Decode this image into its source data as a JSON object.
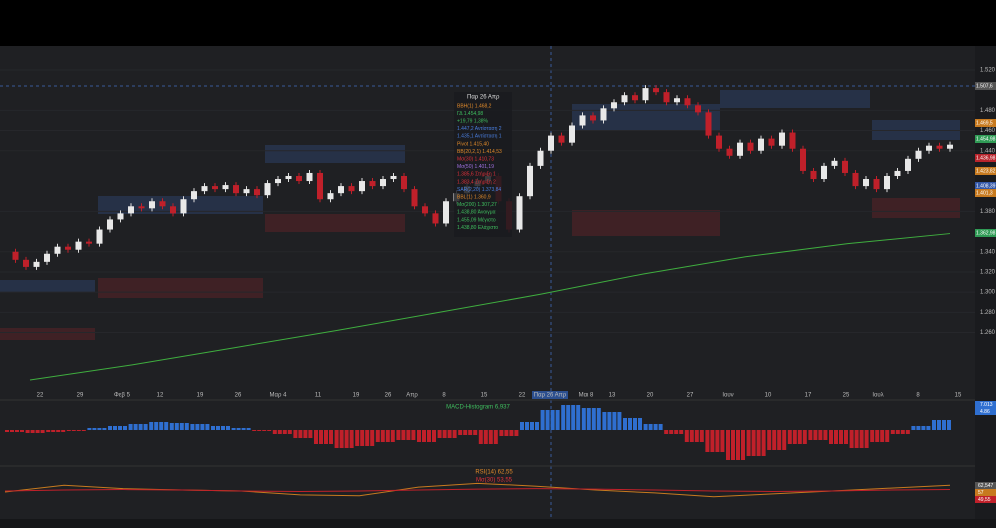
{
  "price_axis": {
    "range": [
      1.2051,
      1.5437
    ],
    "ticks": [
      {
        "value": 1.52,
        "label": "1.520"
      },
      {
        "value": 1.48,
        "label": "1.480"
      },
      {
        "value": 1.46,
        "label": "1.460"
      },
      {
        "value": 1.44,
        "label": "1.440"
      },
      {
        "value": 1.38,
        "label": "1.380"
      },
      {
        "value": 1.34,
        "label": "1.340"
      },
      {
        "value": 1.32,
        "label": "1.320"
      },
      {
        "value": 1.3,
        "label": "1.300"
      },
      {
        "value": 1.28,
        "label": "1.280"
      },
      {
        "value": 1.26,
        "label": "1.260"
      }
    ],
    "badges": [
      "1.507,6",
      "1.469,5",
      "1.454,98",
      "1.436,98",
      "1.423,82",
      "1.408,39",
      "1.401,3",
      "1.362,98"
    ]
  },
  "date_axis": [
    "22",
    "29",
    "Φεβ 5",
    "12",
    "19",
    "26",
    "Μαρ 4",
    "11",
    "19",
    "26",
    "Απρ",
    "8",
    "15",
    "22",
    "Παρ 26 Απρ",
    "Μαι 8",
    "13",
    "20",
    "27",
    "Ιουν",
    "10",
    "17",
    "25",
    "Ιουλ",
    "8",
    "15"
  ],
  "closes": [
    1.34,
    1.332,
    1.325,
    1.33,
    1.338,
    1.345,
    1.342,
    1.35,
    1.348,
    1.362,
    1.372,
    1.378,
    1.385,
    1.383,
    1.39,
    1.385,
    1.378,
    1.392,
    1.4,
    1.405,
    1.402,
    1.406,
    1.398,
    1.402,
    1.396,
    1.408,
    1.412,
    1.415,
    1.41,
    1.418,
    1.392,
    1.398,
    1.405,
    1.4,
    1.41,
    1.405,
    1.412,
    1.415,
    1.402,
    1.385,
    1.378,
    1.368,
    1.39,
    1.398,
    1.405,
    1.41,
    1.415,
    1.39,
    1.362,
    1.395,
    1.425,
    1.44,
    1.455,
    1.448,
    1.465,
    1.475,
    1.47,
    1.482,
    1.488,
    1.495,
    1.49,
    1.502,
    1.498,
    1.488,
    1.492,
    1.485,
    1.478,
    1.455,
    1.442,
    1.435,
    1.448,
    1.44,
    1.452,
    1.445,
    1.458,
    1.442,
    1.42,
    1.412,
    1.425,
    1.43,
    1.418,
    1.405,
    1.412,
    1.402,
    1.415,
    1.42,
    1.432,
    1.44,
    1.445,
    1.442,
    1.446
  ],
  "ma200": [
    1.213,
    1.228,
    1.245,
    1.262,
    1.28,
    1.298,
    1.318,
    1.335,
    1.348,
    1.358
  ],
  "tooltip": {
    "date": "Παρ 26 Απρ",
    "lines": [
      "BBH(1) 1.468,2",
      "ΓΔ 1.454,98",
      "+19,79 1,38%",
      "1.447,2 Αντίσταση 2",
      "1.435,1 Αντίσταση 1",
      "Pivot 1.415,40",
      "BB(20,2,1) 1.414,53",
      "Μσ(30) 1.410,73",
      "Μσ(50) 1.401,19",
      "1.385,6 Στήριξη 1",
      "1.383,4 Στήριξη 2",
      "SAR(2,20) 1.373,84",
      "BBL(1) 1.360,9",
      "Μσ(200) 1.307,27",
      "1.438,80 Άνοιγμα",
      "1.455,09 Μέγιστο",
      "1.438,80 Ελάχιστο"
    ]
  },
  "macd": {
    "label": "MACD-Histogram 6,937",
    "badges": [
      "7.013",
      "4.86"
    ],
    "histogram": [
      -2,
      -3,
      -2,
      -1,
      2,
      4,
      6,
      8,
      7,
      6,
      4,
      2,
      -1,
      -4,
      -8,
      -14,
      -18,
      -16,
      -12,
      -10,
      -12,
      -8,
      -5,
      -14,
      -6,
      8,
      20,
      25,
      22,
      18,
      12,
      6,
      -4,
      -12,
      -22,
      -30,
      -26,
      -20,
      -14,
      -10,
      -14,
      -18,
      -12,
      -4,
      4,
      10
    ]
  },
  "rsi": {
    "label": "RSI(14) 62,55",
    "ma_label": "Μσ(30) 53,55",
    "badges": [
      "62,547",
      "57",
      "49,55"
    ],
    "values": [
      48,
      62,
      55,
      52,
      50,
      42,
      40,
      58,
      66,
      60,
      52,
      46,
      38,
      44,
      50,
      56,
      62
    ],
    "ma": [
      50,
      52,
      53,
      52,
      50,
      49,
      50,
      52,
      54,
      55,
      54,
      52,
      50,
      49,
      50,
      52,
      53
    ]
  }
}
